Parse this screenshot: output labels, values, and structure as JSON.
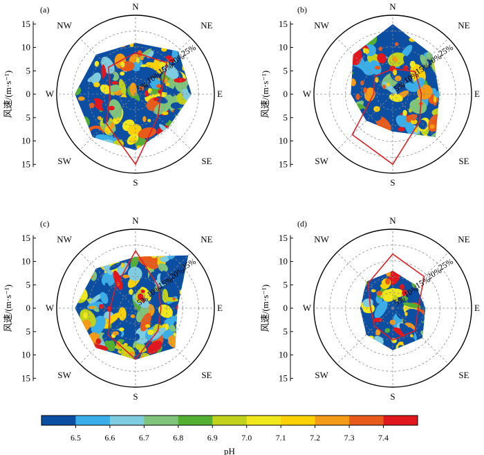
{
  "chart_data": [
    {
      "type": "heatmap",
      "panel": "(a)",
      "ylabel": "风速/(m·s⁻¹)",
      "yticks": [
        "15",
        "10",
        "5",
        "0",
        "5",
        "10",
        "15"
      ],
      "radial_ticks": [
        "5%",
        "10%",
        "15%",
        "20%",
        "25%"
      ],
      "directions": [
        "N",
        "NE",
        "E",
        "SE",
        "S",
        "SW",
        "W",
        "NW"
      ],
      "wind_speed_range": [
        0,
        15
      ],
      "frequency_polygon_pct": {
        "N": 13,
        "NE": 14,
        "E": 8,
        "SE": 10,
        "S": 22,
        "SW": 13,
        "W": 8,
        "NW": 12
      },
      "region_extent_ms": {
        "N": 11,
        "NE": 13,
        "E": 12,
        "SE": 10,
        "S": 12,
        "SW": 13,
        "W": 13,
        "NW": 12
      }
    },
    {
      "type": "heatmap",
      "panel": "(b)",
      "ylabel": "风速/(m·s⁻¹)",
      "yticks": [
        "15",
        "10",
        "5",
        "0",
        "5",
        "10",
        "15"
      ],
      "radial_ticks": [
        "5%",
        "10%",
        "15%",
        "20%",
        "25%"
      ],
      "directions": [
        "N",
        "NE",
        "E",
        "SE",
        "S",
        "SW",
        "W",
        "NW"
      ],
      "wind_speed_range": [
        0,
        15
      ],
      "frequency_polygon_pct": {
        "N": 8,
        "NE": 10,
        "E": 9,
        "SE": 12,
        "S": 22,
        "SW": 18,
        "W": 6,
        "NW": 8
      },
      "region_extent_ms": {
        "N": 15,
        "NE": 12,
        "E": 10,
        "SE": 13,
        "S": 8,
        "SW": 8,
        "W": 9,
        "NW": 12
      }
    },
    {
      "type": "heatmap",
      "panel": "(c)",
      "ylabel": "风速/(m·s⁻¹)",
      "yticks": [
        "15",
        "10",
        "5",
        "0",
        "5",
        "10",
        "15"
      ],
      "radial_ticks": [
        "5%",
        "10%",
        "15%",
        "20%",
        "25%"
      ],
      "directions": [
        "N",
        "NE",
        "E",
        "SE",
        "S",
        "SW",
        "W",
        "NW"
      ],
      "wind_speed_range": [
        0,
        15
      ],
      "frequency_polygon_pct": {
        "N": 18,
        "NE": 10,
        "E": 8,
        "SE": 10,
        "S": 16,
        "SW": 12,
        "W": 8,
        "NW": 9
      },
      "region_extent_ms": {
        "N": 11,
        "NE": 16,
        "E": 9,
        "SE": 12,
        "S": 11,
        "SW": 12,
        "W": 13,
        "NW": 12
      }
    },
    {
      "type": "heatmap",
      "panel": "(d)",
      "ylabel": "风速/(m·s⁻¹)",
      "yticks": [
        "15",
        "10",
        "5",
        "0",
        "5",
        "10",
        "15"
      ],
      "radial_ticks": [
        "5%",
        "10%",
        "15%",
        "20%",
        "25%"
      ],
      "directions": [
        "N",
        "NE",
        "E",
        "SE",
        "S",
        "SW",
        "W",
        "NW"
      ],
      "wind_speed_range": [
        0,
        15
      ],
      "frequency_polygon_pct": {
        "N": 17,
        "NE": 14,
        "E": 8,
        "SE": 10,
        "S": 10,
        "SW": 8,
        "W": 7,
        "NW": 11
      },
      "region_extent_ms": {
        "N": 8,
        "NE": 7,
        "E": 7,
        "SE": 9,
        "S": 9,
        "SW": 8,
        "W": 7,
        "NW": 8
      }
    }
  ],
  "colorbar": {
    "title": "pH",
    "ticks": [
      "6.5",
      "6.6",
      "6.7",
      "6.8",
      "6.9",
      "7.0",
      "7.1",
      "7.2",
      "7.3",
      "7.4"
    ],
    "colors": [
      "#0c4ea2",
      "#3aaee8",
      "#7fcbe0",
      "#80c47c",
      "#52af32",
      "#c0d21c",
      "#f0e71c",
      "#fbd004",
      "#f39a16",
      "#e85a1a",
      "#e0181e"
    ]
  },
  "colors": {
    "polygon": "#e01e24",
    "grid": "#8c8c8c",
    "frame": "#000000"
  }
}
